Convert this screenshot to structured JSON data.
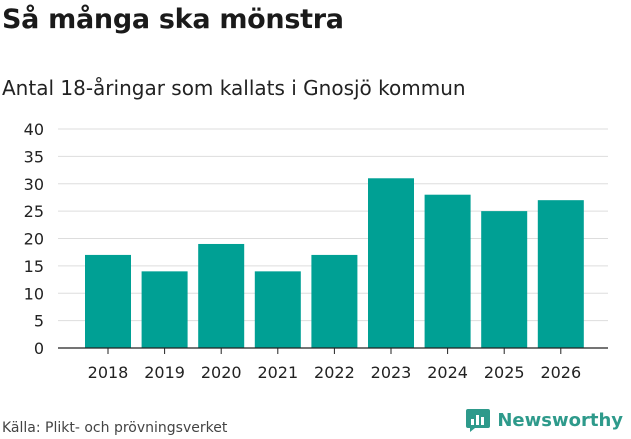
{
  "title": "Så många ska mönstra",
  "source": "Källa: Plikt- och prövningsverket",
  "brand": {
    "name": "Newsworthy",
    "logo_icon": "newsworthy-logo-icon",
    "color": "#2e9a8b"
  },
  "chart_data": {
    "type": "bar",
    "title": "Antal 18-åringar som kallats i Gnosjö kommun",
    "xlabel": "",
    "ylabel": "",
    "categories": [
      "2018",
      "2019",
      "2020",
      "2021",
      "2022",
      "2023",
      "2024",
      "2025",
      "2026"
    ],
    "values": [
      17,
      14,
      19,
      14,
      17,
      31,
      28,
      25,
      27
    ],
    "ylim": [
      0,
      40
    ],
    "yticks": [
      0,
      5,
      10,
      15,
      20,
      25,
      30,
      35,
      40
    ],
    "grid": true,
    "bar_color": "#00a094"
  }
}
